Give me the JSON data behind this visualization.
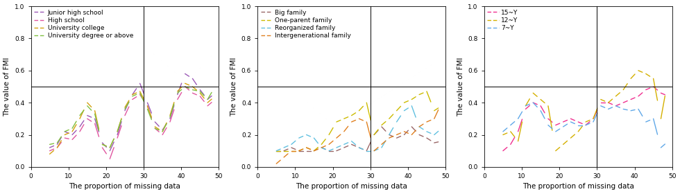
{
  "x": [
    5,
    7,
    9,
    11,
    13,
    15,
    17,
    19,
    21,
    23,
    25,
    27,
    29,
    31,
    33,
    35,
    37,
    39,
    41,
    43,
    45,
    47,
    49
  ],
  "panel1": {
    "xlabel": "The proportion of missing data",
    "ylabel": "The value of FMI",
    "ylim": [
      0.0,
      1.0
    ],
    "xlim": [
      0,
      50
    ],
    "hline": 0.5,
    "vline": 30,
    "series": {
      "Junior high school": {
        "color": "#9b59b6",
        "y": [
          0.12,
          0.14,
          0.22,
          0.2,
          0.25,
          0.32,
          0.3,
          0.15,
          0.1,
          0.2,
          0.35,
          0.45,
          0.52,
          0.4,
          0.28,
          0.23,
          0.3,
          0.45,
          0.58,
          0.55,
          0.48,
          0.42,
          0.46
        ]
      },
      "High school": {
        "color": "#e056a0",
        "y": [
          0.1,
          0.12,
          0.18,
          0.17,
          0.22,
          0.3,
          0.27,
          0.12,
          0.05,
          0.18,
          0.32,
          0.42,
          0.45,
          0.38,
          0.24,
          0.2,
          0.28,
          0.42,
          0.5,
          0.46,
          0.44,
          0.38,
          0.42
        ]
      },
      "University college": {
        "color": "#d4a010",
        "y": [
          0.08,
          0.12,
          0.2,
          0.22,
          0.3,
          0.4,
          0.35,
          0.14,
          0.12,
          0.22,
          0.37,
          0.45,
          0.47,
          0.38,
          0.25,
          0.22,
          0.32,
          0.47,
          0.52,
          0.5,
          0.46,
          0.4,
          0.44
        ]
      },
      "University degree or above": {
        "color": "#80c040",
        "y": [
          0.14,
          0.15,
          0.22,
          0.24,
          0.32,
          0.38,
          0.33,
          0.14,
          0.12,
          0.22,
          0.36,
          0.44,
          0.46,
          0.36,
          0.24,
          0.22,
          0.31,
          0.46,
          0.5,
          0.48,
          0.47,
          0.42,
          0.5
        ]
      }
    },
    "legend_labels": [
      "Junior high school",
      "High school",
      "University college",
      "University degree or above"
    ]
  },
  "panel2": {
    "xlabel": "The proportion of missing data",
    "ylabel": "The value of FMI",
    "ylim": [
      0.0,
      1.0
    ],
    "xlim": [
      0,
      50
    ],
    "hline": 0.5,
    "vline": 30,
    "series": {
      "Big family": {
        "color": "#996666",
        "y": [
          0.1,
          0.1,
          0.12,
          0.1,
          0.1,
          0.1,
          0.12,
          0.1,
          0.1,
          0.12,
          0.14,
          0.12,
          0.1,
          0.2,
          0.25,
          0.2,
          0.18,
          0.2,
          0.25,
          0.2,
          0.18,
          0.15,
          0.16
        ]
      },
      "One-parent family": {
        "color": "#ccbb00",
        "y": [
          0.1,
          0.1,
          0.1,
          0.1,
          0.12,
          0.1,
          0.14,
          0.2,
          0.28,
          0.3,
          0.32,
          0.35,
          0.4,
          0.2,
          0.26,
          0.3,
          0.35,
          0.4,
          0.42,
          0.45,
          0.47,
          0.35,
          0.38
        ]
      },
      "Reorganized family": {
        "color": "#60c0e0",
        "y": [
          0.1,
          0.12,
          0.14,
          0.18,
          0.2,
          0.18,
          0.12,
          0.1,
          0.12,
          0.14,
          0.16,
          0.12,
          0.1,
          0.1,
          0.12,
          0.2,
          0.28,
          0.35,
          0.38,
          0.25,
          0.22,
          0.2,
          0.24
        ]
      },
      "Intergenerational family": {
        "color": "#e08020",
        "y": [
          0.02,
          0.06,
          0.1,
          0.1,
          0.12,
          0.1,
          0.12,
          0.14,
          0.18,
          0.22,
          0.28,
          0.3,
          0.28,
          0.1,
          0.14,
          0.18,
          0.2,
          0.22,
          0.2,
          0.25,
          0.28,
          0.3,
          0.4
        ]
      }
    },
    "legend_labels": [
      "Big family",
      "One-parent family",
      "Reorganized family",
      "Intergenerational family"
    ]
  },
  "panel3": {
    "xlabel": "The proportion of missing data",
    "ylabel": "The value of FMI",
    "ylim": [
      0.0,
      1.0
    ],
    "xlim": [
      0,
      50
    ],
    "hline": 0.5,
    "vline": 30,
    "series": {
      "15~Y": {
        "color": "#f03090",
        "y": [
          0.1,
          0.14,
          0.22,
          0.36,
          0.4,
          0.38,
          0.3,
          0.26,
          0.28,
          0.3,
          0.28,
          0.26,
          0.3,
          0.4,
          0.4,
          0.38,
          0.4,
          0.42,
          0.44,
          0.48,
          0.5,
          0.46,
          0.44
        ]
      },
      "12~Y": {
        "color": "#d4b000",
        "y": [
          0.2,
          0.22,
          0.16,
          0.38,
          0.46,
          0.42,
          0.38,
          0.1,
          0.14,
          0.18,
          0.22,
          0.28,
          0.3,
          0.42,
          0.4,
          0.44,
          0.48,
          0.55,
          0.6,
          0.58,
          0.55,
          0.3,
          0.56
        ]
      },
      "7~Y": {
        "color": "#60a8e8",
        "y": [
          0.22,
          0.26,
          0.3,
          0.38,
          0.4,
          0.35,
          0.26,
          0.22,
          0.25,
          0.28,
          0.26,
          0.26,
          0.28,
          0.38,
          0.36,
          0.38,
          0.36,
          0.35,
          0.36,
          0.28,
          0.3,
          0.12,
          0.16
        ]
      }
    },
    "legend_labels": [
      "15~Y",
      "12~Y",
      "7~Y"
    ]
  },
  "yticks": [
    0.0,
    0.2,
    0.4,
    0.6,
    0.8,
    1.0
  ],
  "xticks": [
    0,
    10,
    20,
    30,
    40,
    50
  ],
  "tick_fontsize": 6.5,
  "label_fontsize": 7.5,
  "legend_fontsize": 6.5,
  "bg_color": "#ffffff"
}
